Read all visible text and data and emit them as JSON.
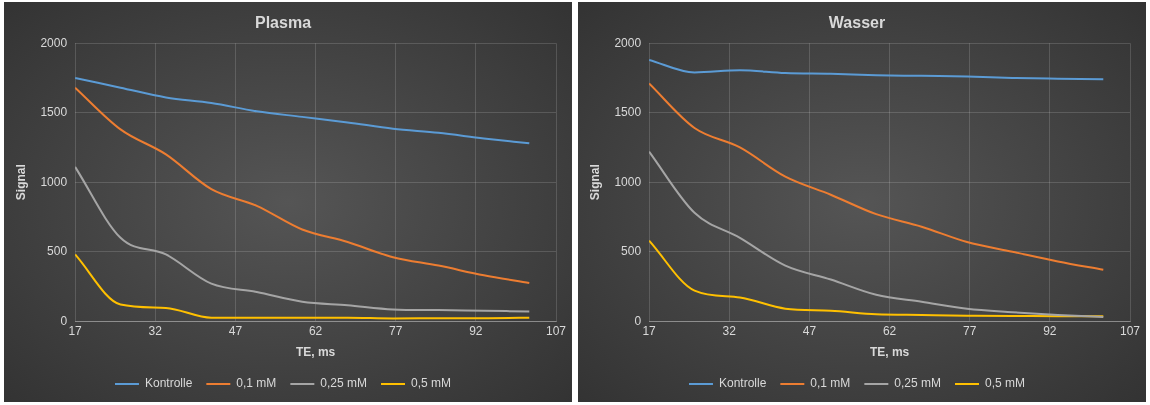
{
  "chart_data": [
    {
      "type": "line",
      "title": "Plasma",
      "xlabel": "TE, ms",
      "ylabel": "Signal",
      "x": [
        17,
        25.5,
        34,
        42.5,
        51,
        59.5,
        68,
        76.5,
        85,
        93.5,
        102
      ],
      "xlim": [
        17,
        107
      ],
      "xticks": [
        17,
        32,
        47,
        62,
        77,
        92,
        107
      ],
      "ylim": [
        0,
        2000
      ],
      "yticks": [
        0,
        500,
        1000,
        1500,
        2000
      ],
      "grid": true,
      "legend": "bottom",
      "marker": "none",
      "series": [
        {
          "name": "Kontrolle",
          "color": "#5b9bd5",
          "values": [
            1750,
            1680,
            1610,
            1570,
            1510,
            1470,
            1430,
            1385,
            1355,
            1315,
            1280
          ]
        },
        {
          "name": "0,1 mM",
          "color": "#ed7d31",
          "values": [
            1680,
            1380,
            1200,
            950,
            830,
            660,
            570,
            460,
            400,
            330,
            275
          ]
        },
        {
          "name": "0,25 mM",
          "color": "#a5a5a5",
          "values": [
            1110,
            600,
            480,
            270,
            210,
            140,
            115,
            85,
            80,
            75,
            70
          ]
        },
        {
          "name": "0,5 mM",
          "color": "#ffc000",
          "values": [
            480,
            120,
            95,
            25,
            25,
            25,
            25,
            20,
            22,
            22,
            25
          ]
        }
      ]
    },
    {
      "type": "line",
      "title": "Wasser",
      "xlabel": "TE, ms",
      "ylabel": "Signal",
      "x": [
        17,
        25.5,
        34,
        42.5,
        51,
        59.5,
        68,
        76.5,
        85,
        93.5,
        102
      ],
      "xlim": [
        17,
        107
      ],
      "xticks": [
        17,
        32,
        47,
        62,
        77,
        92,
        107
      ],
      "ylim": [
        0,
        2000
      ],
      "yticks": [
        0,
        500,
        1000,
        1500,
        2000
      ],
      "grid": true,
      "legend": "bottom",
      "marker": "none",
      "series": [
        {
          "name": "Kontrolle",
          "color": "#5b9bd5",
          "values": [
            1880,
            1790,
            1805,
            1785,
            1780,
            1770,
            1765,
            1760,
            1750,
            1745,
            1740
          ]
        },
        {
          "name": "0,1 mM",
          "color": "#ed7d31",
          "values": [
            1710,
            1390,
            1250,
            1040,
            910,
            770,
            680,
            570,
            500,
            430,
            370
          ]
        },
        {
          "name": "0,25 mM",
          "color": "#a5a5a5",
          "values": [
            1220,
            780,
            600,
            400,
            300,
            190,
            140,
            90,
            65,
            45,
            30
          ]
        },
        {
          "name": "0,5 mM",
          "color": "#ffc000",
          "values": [
            580,
            220,
            170,
            90,
            75,
            50,
            45,
            40,
            38,
            35,
            35
          ]
        }
      ]
    }
  ]
}
